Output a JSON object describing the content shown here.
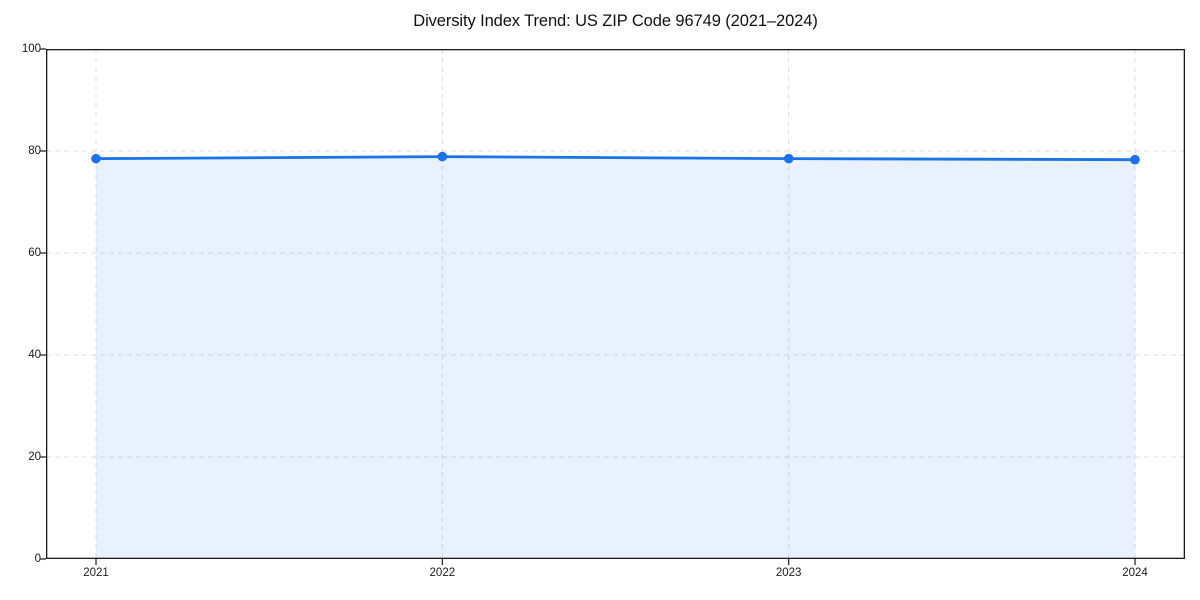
{
  "page": {
    "background": "#ffffff"
  },
  "chart_data": {
    "type": "area",
    "title": "Diversity Index Trend: US ZIP Code 96749 (2021–2024)",
    "x_categories": [
      "2021",
      "2022",
      "2023",
      "2024"
    ],
    "series": [
      {
        "name": "Diversity Index",
        "values": [
          78.5,
          78.9,
          78.5,
          78.3
        ]
      }
    ],
    "xlabel": "",
    "ylabel": "",
    "ylim": [
      0,
      100
    ],
    "yticks": [
      0,
      20,
      40,
      60,
      80,
      100
    ],
    "grid": true,
    "grid_style": "dashed",
    "legend_position": "none",
    "line_color": "#1a73e8",
    "fill_color": "rgba(26,115,232,0.10)",
    "marker": "circle",
    "axis_color": "#1a1a1a",
    "grid_color": "#dcdcdc"
  }
}
